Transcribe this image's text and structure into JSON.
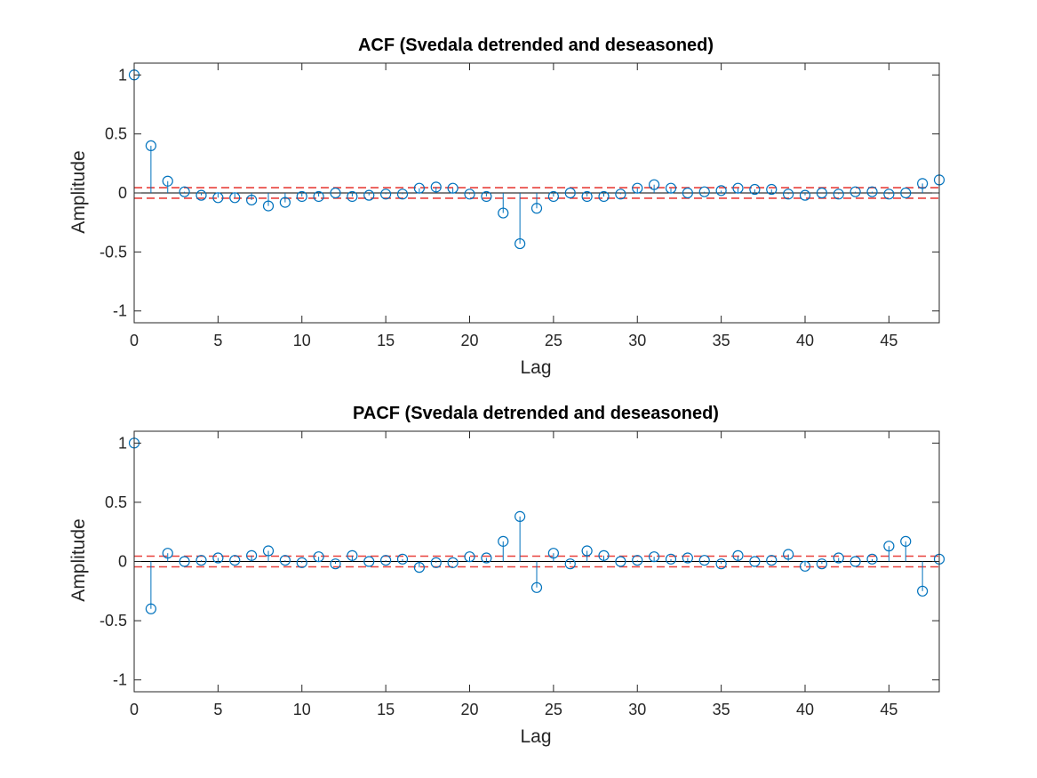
{
  "figure": {
    "background": "#ffffff"
  },
  "colors": {
    "stem": "#0072BD",
    "confidence_band": "#E8413C",
    "axes": "#262626",
    "zero_line": "#000000"
  },
  "chart_data": [
    {
      "type": "stem",
      "title": "ACF (Svedala detrended and deseasoned)",
      "xlabel": "Lag",
      "ylabel": "Amplitude",
      "xlim": [
        0,
        48
      ],
      "ylim": [
        -1.1,
        1.1
      ],
      "xticks": [
        0,
        5,
        10,
        15,
        20,
        25,
        30,
        35,
        40,
        45
      ],
      "yticks": [
        -1,
        -0.5,
        0,
        0.5,
        1
      ],
      "ytick_labels": [
        "-1",
        "-0.5",
        "0",
        "0.5",
        "1"
      ],
      "confidence_bound": 0.045,
      "grid": false,
      "x": [
        0,
        1,
        2,
        3,
        4,
        5,
        6,
        7,
        8,
        9,
        10,
        11,
        12,
        13,
        14,
        15,
        16,
        17,
        18,
        19,
        20,
        21,
        22,
        23,
        24,
        25,
        26,
        27,
        28,
        29,
        30,
        31,
        32,
        33,
        34,
        35,
        36,
        37,
        38,
        39,
        40,
        41,
        42,
        43,
        44,
        45,
        46,
        47,
        48
      ],
      "values": [
        1.0,
        0.4,
        0.1,
        0.01,
        -0.02,
        -0.04,
        -0.04,
        -0.06,
        -0.11,
        -0.08,
        -0.03,
        -0.03,
        0.0,
        -0.03,
        -0.02,
        -0.01,
        -0.01,
        0.04,
        0.05,
        0.04,
        -0.01,
        -0.03,
        -0.17,
        -0.43,
        -0.13,
        -0.03,
        0.0,
        -0.03,
        -0.03,
        -0.01,
        0.04,
        0.07,
        0.04,
        0.0,
        0.01,
        0.02,
        0.04,
        0.03,
        0.03,
        -0.01,
        -0.02,
        0.0,
        -0.01,
        0.01,
        0.01,
        -0.01,
        0.0,
        0.08,
        0.11
      ]
    },
    {
      "type": "stem",
      "title": "PACF (Svedala detrended and deseasoned)",
      "xlabel": "Lag",
      "ylabel": "Amplitude",
      "xlim": [
        0,
        48
      ],
      "ylim": [
        -1.1,
        1.1
      ],
      "xticks": [
        0,
        5,
        10,
        15,
        20,
        25,
        30,
        35,
        40,
        45
      ],
      "yticks": [
        -1,
        -0.5,
        0,
        0.5,
        1
      ],
      "ytick_labels": [
        "-1",
        "-0.5",
        "0",
        "0.5",
        "1"
      ],
      "confidence_bound": 0.045,
      "grid": false,
      "x": [
        0,
        1,
        2,
        3,
        4,
        5,
        6,
        7,
        8,
        9,
        10,
        11,
        12,
        13,
        14,
        15,
        16,
        17,
        18,
        19,
        20,
        21,
        22,
        23,
        24,
        25,
        26,
        27,
        28,
        29,
        30,
        31,
        32,
        33,
        34,
        35,
        36,
        37,
        38,
        39,
        40,
        41,
        42,
        43,
        44,
        45,
        46,
        47,
        48
      ],
      "values": [
        1.0,
        -0.4,
        0.07,
        0.0,
        0.01,
        0.03,
        0.01,
        0.05,
        0.09,
        0.01,
        -0.01,
        0.04,
        -0.02,
        0.05,
        0.0,
        0.01,
        0.02,
        -0.05,
        -0.01,
        -0.01,
        0.04,
        0.03,
        0.17,
        0.38,
        -0.22,
        0.07,
        -0.02,
        0.09,
        0.05,
        0.0,
        0.01,
        0.04,
        0.02,
        0.03,
        0.01,
        -0.02,
        0.05,
        0.0,
        0.01,
        0.06,
        -0.04,
        -0.02,
        0.03,
        0.0,
        0.02,
        0.13,
        0.17,
        -0.25,
        0.02
      ]
    }
  ]
}
